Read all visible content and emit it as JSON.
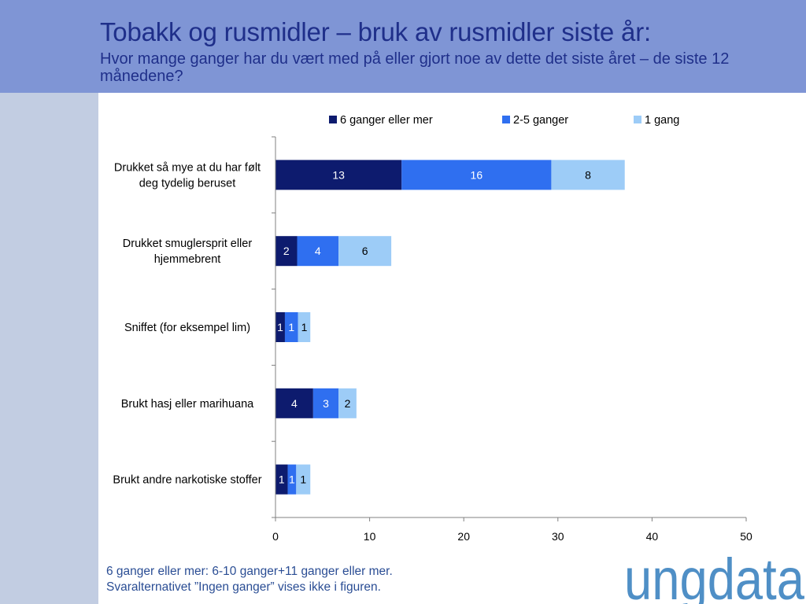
{
  "header": {
    "title": "Tobakk og rusmidler – bruk av rusmidler siste år:",
    "subtitle": "Hvor mange ganger har du vært med på eller gjort noe av dette det siste året – de siste 12 månedene?"
  },
  "colors": {
    "header_bg": "#7f95d5",
    "side_strip": "#c2cde2",
    "title_text": "#1f2f8a",
    "footnote_text": "#2a4d94",
    "logo": "#4f8fc6"
  },
  "chart_data": {
    "type": "bar",
    "orientation": "horizontal",
    "stacked": true,
    "categories": [
      "Drukket så mye at du har følt deg tydelig beruset",
      "Drukket smuglersprit eller hjemmebrent",
      "Sniffet (for eksempel lim)",
      "Brukt hasj eller marihuana",
      "Brukt andre narkotiske stoffer"
    ],
    "series": [
      {
        "name": "6 ganger eller mer",
        "color": "#0d1b6e",
        "label_color": "#ffffff",
        "values": [
          13.4,
          2.3,
          1,
          4,
          1.3
        ],
        "labels": [
          "13",
          "2",
          "1",
          "4",
          "1"
        ]
      },
      {
        "name": "2-5 ganger",
        "color": "#2f6ff0",
        "label_color": "#ffffff",
        "values": [
          15.9,
          4.4,
          1.4,
          2.7,
          0.9
        ],
        "labels": [
          "16",
          "4",
          "1",
          "3",
          "1"
        ]
      },
      {
        "name": "1 gang",
        "color": "#9dccf7",
        "label_color": "#000000",
        "values": [
          7.8,
          5.6,
          1.3,
          1.9,
          1.5
        ],
        "labels": [
          "8",
          "6",
          "1",
          "2",
          "1"
        ]
      }
    ],
    "xlim": [
      0,
      50
    ],
    "xticks": [
      0,
      10,
      20,
      30,
      40,
      50
    ],
    "grid": false,
    "legend": "top"
  },
  "footnote": {
    "line1": "6 ganger eller mer: 6-10 ganger+11 ganger eller mer.",
    "line2": "Svaralternativet ”Ingen ganger” vises ikke i figuren."
  },
  "logo": {
    "text": "ungdata"
  }
}
